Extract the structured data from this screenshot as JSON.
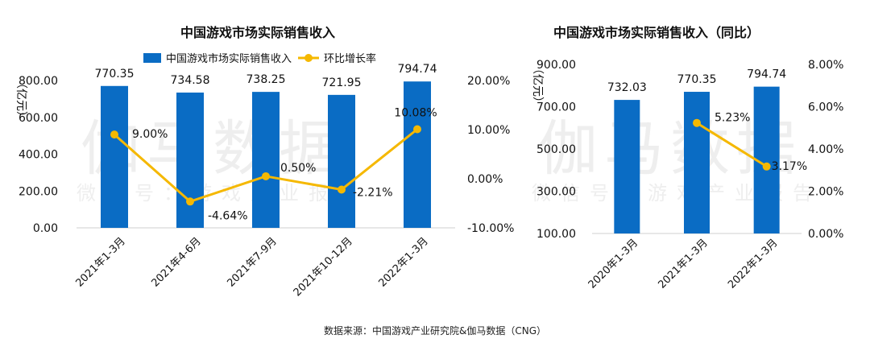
{
  "watermark": {
    "main": "伽马数据",
    "sub": "微信号：游戏产业报告"
  },
  "source": "数据来源：中国游戏产业研究院&伽马数据（CNG）",
  "colors": {
    "bar": "#0a6cc4",
    "line": "#f5b800",
    "text": "#111111"
  },
  "chart_data": [
    {
      "type": "bar+line",
      "title": "中国游戏市场实际销售收入",
      "ylabel": "（亿元）",
      "categories": [
        "2021年1-3月",
        "2021年4-6月",
        "2021年7-9月",
        "2021年10-12月",
        "2022年1-3月"
      ],
      "series": [
        {
          "name": "中国游戏市场实际销售收入",
          "kind": "bar",
          "axis": "left",
          "values": [
            770.35,
            734.58,
            738.25,
            721.95,
            794.74
          ],
          "labels": [
            "770.35",
            "734.58",
            "738.25",
            "721.95",
            "794.74"
          ]
        },
        {
          "name": "环比增长率",
          "kind": "line",
          "axis": "right",
          "values": [
            9.0,
            -4.64,
            0.5,
            -2.21,
            10.08
          ],
          "labels": [
            "9.00%",
            "-4.64%",
            "0.50%",
            "-2.21%",
            "10.08%"
          ]
        }
      ],
      "left_axis": {
        "ylim": [
          0,
          800
        ],
        "ticks": [
          "0.00",
          "200.00",
          "400.00",
          "600.00",
          "800.00"
        ]
      },
      "right_axis": {
        "ylim": [
          -10,
          20
        ],
        "ticks": [
          "-10.00%",
          "0.00%",
          "10.00%",
          "20.00%"
        ]
      },
      "legend_position": "top"
    },
    {
      "type": "bar+line",
      "title": "中国游戏市场实际销售收入（同比）",
      "ylabel": "（亿元）",
      "categories": [
        "2020年1-3月",
        "2021年1-3月",
        "2022年1-3月"
      ],
      "series": [
        {
          "kind": "bar",
          "axis": "left",
          "values": [
            732.03,
            770.35,
            794.74
          ],
          "labels": [
            "732.03",
            "770.35",
            "794.74"
          ]
        },
        {
          "kind": "line",
          "axis": "right",
          "values": [
            null,
            5.23,
            3.17
          ],
          "labels": [
            "",
            "5.23%",
            "3.17%"
          ]
        }
      ],
      "left_axis": {
        "ylim": [
          100,
          900
        ],
        "ticks": [
          "100.00",
          "300.00",
          "500.00",
          "700.00",
          "900.00"
        ]
      },
      "right_axis": {
        "ylim": [
          0,
          8
        ],
        "ticks": [
          "0.00%",
          "2.00%",
          "4.00%",
          "6.00%",
          "8.00%"
        ]
      }
    }
  ]
}
